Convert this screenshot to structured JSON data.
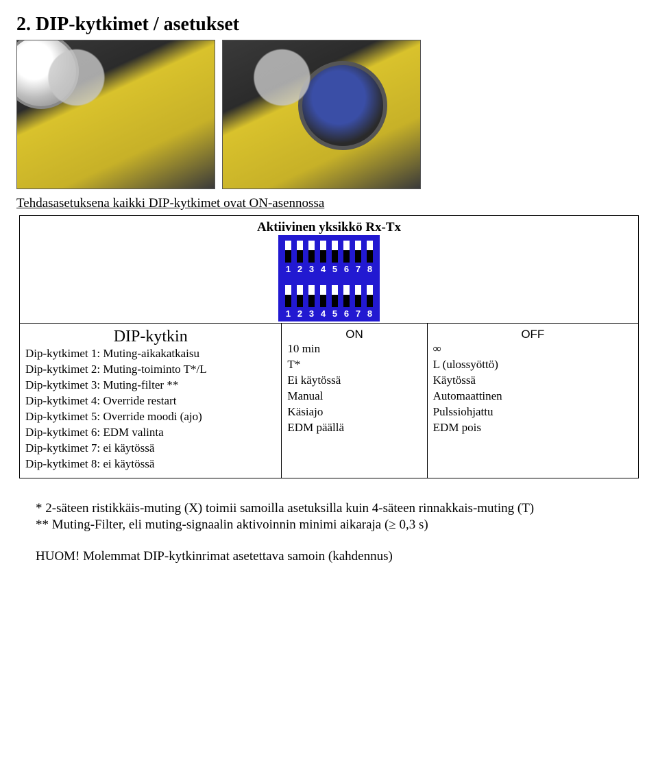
{
  "title": "2. DIP-kytkimet / asetukset",
  "intro_line": "Tehdasasetuksena kaikki DIP-kytkimet ovat ON-asennossa",
  "subheading": "Aktiivinen yksikkö Rx-Tx",
  "dip_numbers": [
    "1",
    "2",
    "3",
    "4",
    "5",
    "6",
    "7",
    "8"
  ],
  "table": {
    "head_dip": "DIP-kytkin",
    "head_on": "ON",
    "head_off": "OFF",
    "dip_items": [
      "Dip-kytkimet 1: Muting-aikakatkaisu",
      "Dip-kytkimet 2: Muting-toiminto T*/L",
      "Dip-kytkimet 3: Muting-filter **",
      "Dip-kytkimet 4: Override restart",
      "Dip-kytkimet 5: Override moodi (ajo)",
      "Dip-kytkimet 6: EDM valinta",
      "Dip-kytkimet 7: ei käytössä",
      "Dip-kytkimet 8: ei käytössä"
    ],
    "on_items": [
      "10 min",
      "T*",
      "Ei käytössä",
      "Manual",
      "Käsiajo",
      "EDM päällä"
    ],
    "off_items": [
      "∞",
      "L (ulossyöttö)",
      "Käytössä",
      "Automaattinen",
      "Pulssiohjattu",
      "EDM pois"
    ]
  },
  "footnote1": "* 2-säteen ristikkäis-muting (X) toimii samoilla asetuksilla kuin 4-säteen rinnakkais-muting (T)",
  "footnote2": "** Muting-Filter, eli muting-signaalin aktivoinnin minimi aikaraja (≥ 0,3 s)",
  "huom": "HUOM! Molemmat DIP-kytkinrimat asetettava samoin (kahdennus)"
}
